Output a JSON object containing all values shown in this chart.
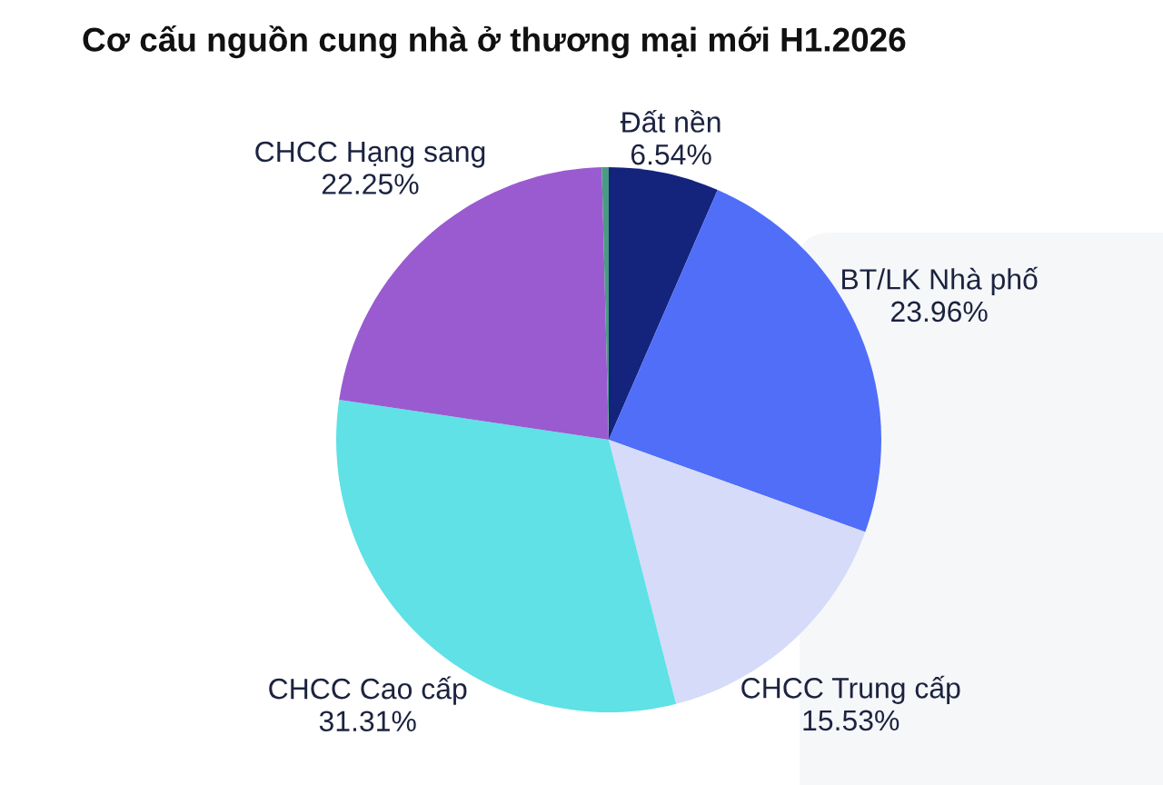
{
  "chart_data": {
    "type": "pie",
    "title": "Cơ cấu nguồn cung nhà ở thương mại mới H1.2026",
    "categories": [
      "Đất nền",
      "BT/LK Nhà phố",
      "CHCC Trung cấp",
      "CHCC Cao cấp",
      "CHCC Hạng sang",
      null
    ],
    "values": [
      6.54,
      23.96,
      15.53,
      31.31,
      22.25,
      0.41
    ],
    "colors": [
      "#14237c",
      "#506ef8",
      "#d5dbf8",
      "#5fe1e6",
      "#9a5bd0",
      "#4a9b84"
    ],
    "value_labels": [
      "6.54%",
      "23.96%",
      "15.53%",
      "31.31%",
      "22.25%",
      null
    ]
  }
}
